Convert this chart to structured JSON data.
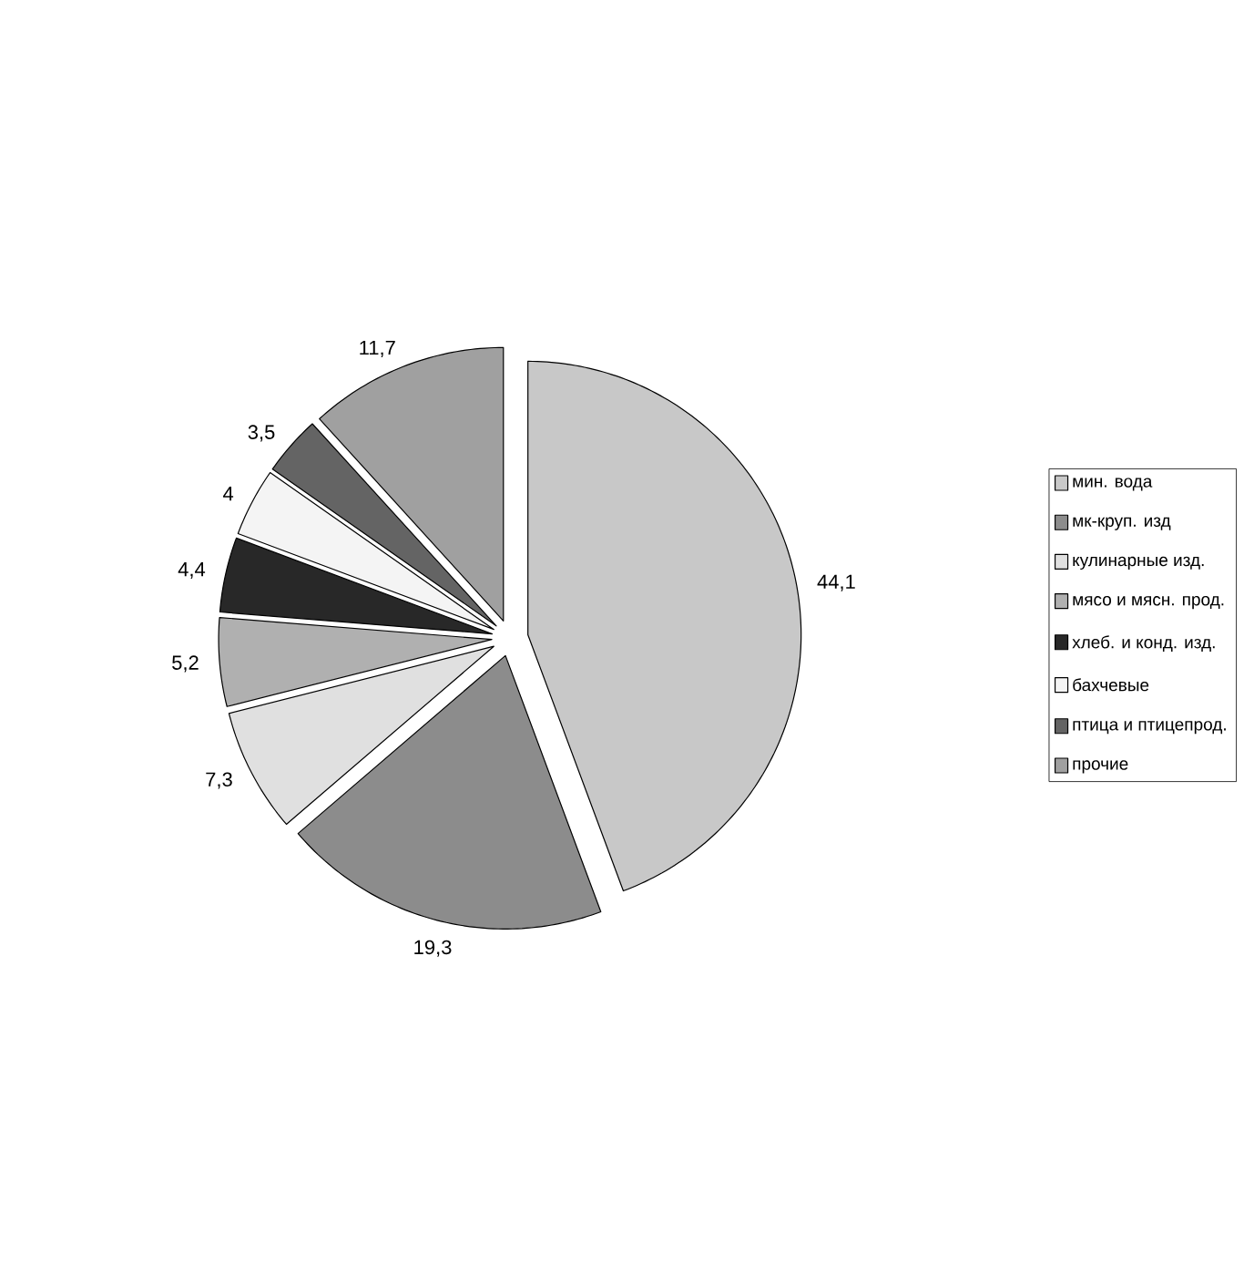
{
  "chart_data": {
    "type": "pie",
    "categories": [
      "мин. вода",
      "мк-круп. изд",
      "кулинарные изд.",
      "мясо и мясн. прод.",
      "хлеб. и конд. изд.",
      "бахчевые",
      "птица и птицепрод.",
      "прочие"
    ],
    "values": [
      44.1,
      19.3,
      7.3,
      5.2,
      4.4,
      4,
      3.5,
      11.7
    ],
    "value_labels": [
      "44,1",
      "19,3",
      "7,3",
      "5,2",
      "4,4",
      "4",
      "3,5",
      "11,7"
    ],
    "colors": [
      "#c8c8c8",
      "#8c8c8c",
      "#e0e0e0",
      "#b0b0b0",
      "#282828",
      "#f4f4f4",
      "#646464",
      "#a0a0a0"
    ],
    "legend": "right"
  }
}
